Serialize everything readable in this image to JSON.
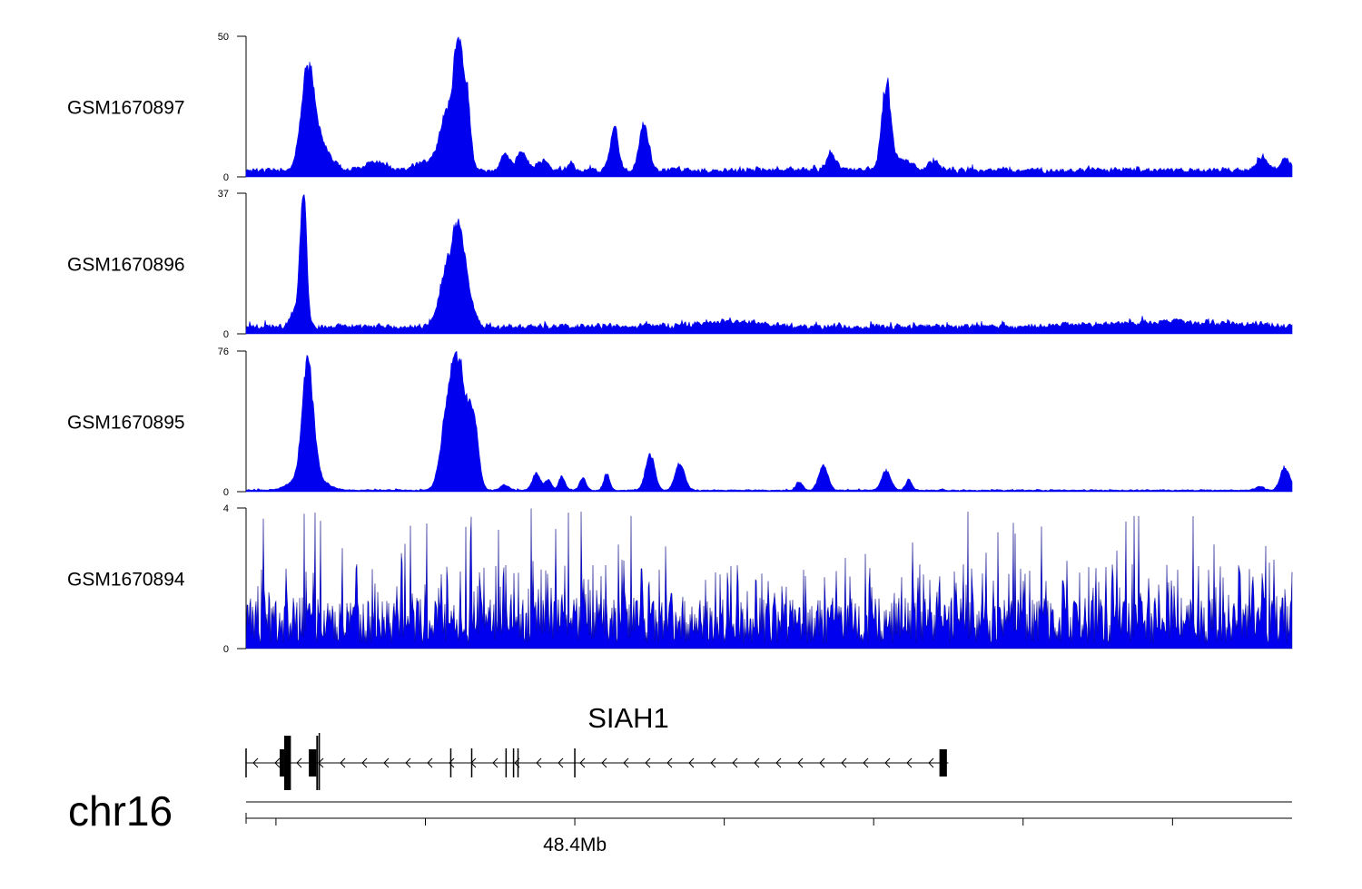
{
  "chart_data": {
    "type": "area",
    "colors": {
      "signal": "#0000ee",
      "axis": "#000000",
      "gene": "#000000"
    },
    "x_domain": [
      48300,
      49000
    ],
    "tracks": [
      {
        "name": "GSM1670897",
        "ylim": [
          0,
          50
        ],
        "ytick_labels": [
          "50",
          "0"
        ],
        "background": 2,
        "noise": 1.3,
        "peaks": [
          {
            "x": 48341,
            "w": 4.5,
            "h": 34
          },
          {
            "x": 48349,
            "w": 7,
            "h": 8
          },
          {
            "x": 48442,
            "w": 3,
            "h": 48
          },
          {
            "x": 48434,
            "w": 4,
            "h": 18
          },
          {
            "x": 48448,
            "w": 2,
            "h": 22
          },
          {
            "x": 48428,
            "w": 12,
            "h": 4
          },
          {
            "x": 48386,
            "w": 6,
            "h": 3
          },
          {
            "x": 48473,
            "w": 3,
            "h": 6
          },
          {
            "x": 48484,
            "w": 3,
            "h": 7
          },
          {
            "x": 48498,
            "w": 3,
            "h": 4
          },
          {
            "x": 48517,
            "w": 2,
            "h": 3
          },
          {
            "x": 48546,
            "w": 2.5,
            "h": 16
          },
          {
            "x": 48566,
            "w": 3,
            "h": 17
          },
          {
            "x": 48691,
            "w": 3,
            "h": 6
          },
          {
            "x": 48728,
            "w": 3,
            "h": 30
          },
          {
            "x": 48738,
            "w": 6,
            "h": 4
          },
          {
            "x": 48760,
            "w": 4,
            "h": 3
          },
          {
            "x": 48980,
            "w": 4,
            "h": 4
          },
          {
            "x": 48995,
            "w": 3,
            "h": 4
          }
        ]
      },
      {
        "name": "GSM1670896",
        "ylim": [
          0,
          37
        ],
        "ytick_labels": [
          "37",
          "0"
        ],
        "background": 1.5,
        "noise": 1.2,
        "peaks": [
          {
            "x": 48338,
            "w": 2,
            "h": 36
          },
          {
            "x": 48334,
            "w": 4,
            "h": 5
          },
          {
            "x": 48440,
            "w": 5,
            "h": 22
          },
          {
            "x": 48431,
            "w": 4,
            "h": 8
          },
          {
            "x": 48446,
            "w": 5,
            "h": 8
          },
          {
            "x": 48625,
            "w": 20,
            "h": 1.5
          },
          {
            "x": 48920,
            "w": 40,
            "h": 1.2
          }
        ]
      },
      {
        "name": "GSM1670895",
        "ylim": [
          0,
          76
        ],
        "ytick_labels": [
          "76",
          "0"
        ],
        "background": 0.6,
        "noise": 0.6,
        "peaks": [
          {
            "x": 48341,
            "w": 3.5,
            "h": 64
          },
          {
            "x": 48341,
            "w": 9,
            "h": 10
          },
          {
            "x": 48441,
            "w": 6,
            "h": 70
          },
          {
            "x": 48433,
            "w": 4,
            "h": 16
          },
          {
            "x": 48452,
            "w": 3,
            "h": 33
          },
          {
            "x": 48494,
            "w": 2.5,
            "h": 10
          },
          {
            "x": 48502,
            "w": 2,
            "h": 6
          },
          {
            "x": 48511,
            "w": 2,
            "h": 8
          },
          {
            "x": 48525,
            "w": 2,
            "h": 7
          },
          {
            "x": 48541,
            "w": 2,
            "h": 9
          },
          {
            "x": 48570,
            "w": 3,
            "h": 20
          },
          {
            "x": 48590,
            "w": 3,
            "h": 15
          },
          {
            "x": 48686,
            "w": 3,
            "h": 14
          },
          {
            "x": 48728,
            "w": 3,
            "h": 11
          },
          {
            "x": 48743,
            "w": 2,
            "h": 6
          },
          {
            "x": 48670,
            "w": 2,
            "h": 5
          },
          {
            "x": 48473,
            "w": 3,
            "h": 3
          },
          {
            "x": 48978,
            "w": 3,
            "h": 2
          },
          {
            "x": 48994,
            "w": 2.5,
            "h": 12
          },
          {
            "x": 48998,
            "w": 2,
            "h": 4
          }
        ]
      },
      {
        "name": "GSM1670894",
        "ylim": [
          0,
          4
        ],
        "ytick_labels": [
          "4",
          "0"
        ],
        "background": 0,
        "noise": 0,
        "dense_noise": true,
        "peaks": []
      }
    ],
    "gene": {
      "name": "SIAH1",
      "strand": "-",
      "start": 48300,
      "end": 48770,
      "exons": [
        {
          "start": 48322.5,
          "end": 48325.5,
          "tall": false
        },
        {
          "start": 48325.5,
          "end": 48330,
          "tall": true
        },
        {
          "start": 48342,
          "end": 48347,
          "tall": false
        },
        {
          "start": 48347,
          "end": 48348,
          "tall": true
        },
        {
          "start": 48764,
          "end": 48769,
          "tall": false
        }
      ],
      "introns_marks": [
        48300,
        48437,
        48451,
        48474,
        48479,
        48482,
        48520
      ]
    },
    "axis": {
      "chrom": "chr16",
      "tick_positions": [
        48320,
        48420,
        48520,
        48620,
        48720,
        48820,
        48920
      ],
      "labeled_tick": {
        "x": 48520,
        "label": "48.4Mb"
      }
    }
  }
}
